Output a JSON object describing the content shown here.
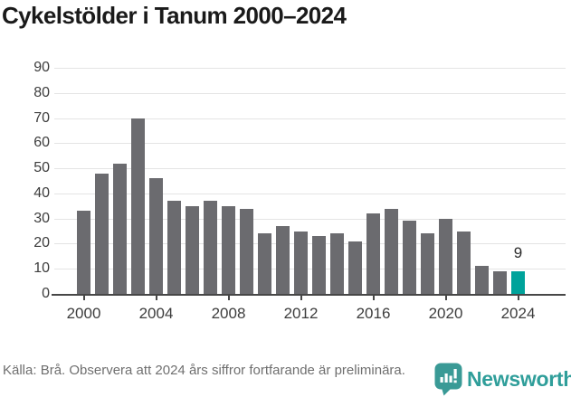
{
  "title": "Cykelstölder i Tanum 2000–2024",
  "chart_data": {
    "type": "bar",
    "title": "Cykelstölder i Tanum 2000–2024",
    "categories": [
      "2000",
      "2001",
      "2002",
      "2003",
      "2004",
      "2005",
      "2006",
      "2007",
      "2008",
      "2009",
      "2010",
      "2011",
      "2012",
      "2013",
      "2014",
      "2015",
      "2016",
      "2017",
      "2018",
      "2019",
      "2020",
      "2021",
      "2022",
      "2023",
      "2024"
    ],
    "values": [
      33,
      48,
      52,
      70,
      46,
      37,
      35,
      37,
      35,
      34,
      24,
      27,
      25,
      23,
      24,
      21,
      32,
      34,
      29,
      24,
      30,
      25,
      11,
      9,
      9
    ],
    "xlabel": "",
    "ylabel": "",
    "ylim": [
      0,
      90
    ],
    "yticks": [
      0,
      10,
      20,
      30,
      40,
      50,
      60,
      70,
      80,
      90
    ],
    "xtick_labels": [
      "2000",
      "2004",
      "2008",
      "2012",
      "2016",
      "2020",
      "2024"
    ],
    "grid": "horizontal",
    "legend": "none",
    "highlight": {
      "category": "2024",
      "value": 9,
      "label": "9"
    },
    "colors": {
      "bar": "#6b6b6f",
      "highlight": "#00a39b",
      "grid": "#e4e4e4",
      "axis": "#474747",
      "tick_label": "#3d3d3d"
    }
  },
  "footer": {
    "source": "Källa: Brå. Observera att 2024 års siffror fortfarande är preliminära.",
    "brand": "Newsworthy",
    "brand_color": "#2f9e9a",
    "brand_icon": "newsworthy-speech-bubble-barchart-icon"
  }
}
